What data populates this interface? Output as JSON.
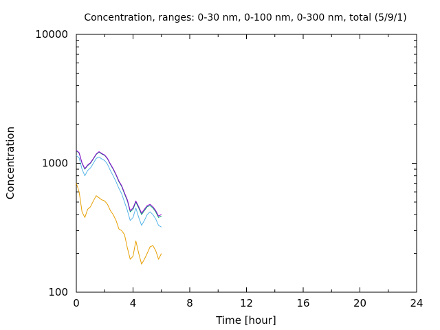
{
  "chart_data": {
    "type": "line",
    "title": "Concentration, ranges: 0-30 nm, 0-100 nm, 0-300 nm, total (5/9/1)",
    "xlabel": "Time [hour]",
    "ylabel": "Concentration",
    "xlim": [
      0,
      24
    ],
    "ylim": [
      100,
      10000
    ],
    "yscale": "log",
    "xticks": [
      0,
      4,
      8,
      12,
      16,
      20,
      24
    ],
    "yticks": [
      100,
      1000,
      10000
    ],
    "xtick_labels": [
      "0",
      "4",
      "8",
      "12",
      "16",
      "20",
      "24"
    ],
    "ytick_labels": [
      "100",
      "1000",
      "10000"
    ],
    "grid": false,
    "legend": "none",
    "series": [
      {
        "color": "#e69f00",
        "x": [
          0,
          0.2,
          0.4,
          0.6,
          0.8,
          1.0,
          1.2,
          1.4,
          1.6,
          1.8,
          2.0,
          2.2,
          2.4,
          2.6,
          2.8,
          3.0,
          3.2,
          3.4,
          3.6,
          3.8,
          4.0,
          4.2,
          4.4,
          4.6,
          4.8,
          5.0,
          5.2,
          5.4,
          5.6,
          5.8,
          6.0
        ],
        "y": [
          700,
          600,
          420,
          380,
          440,
          460,
          510,
          560,
          540,
          520,
          510,
          480,
          430,
          400,
          360,
          310,
          300,
          280,
          220,
          180,
          190,
          250,
          200,
          165,
          180,
          200,
          225,
          230,
          210,
          180,
          200
        ]
      },
      {
        "color": "#56b4e9",
        "x": [
          0,
          0.2,
          0.4,
          0.6,
          0.8,
          1.0,
          1.2,
          1.4,
          1.6,
          1.8,
          2.0,
          2.2,
          2.4,
          2.6,
          2.8,
          3.0,
          3.2,
          3.4,
          3.6,
          3.8,
          4.0,
          4.2,
          4.4,
          4.6,
          4.8,
          5.0,
          5.2,
          5.4,
          5.6,
          5.8,
          6.0
        ],
        "y": [
          1150,
          1100,
          900,
          800,
          880,
          920,
          1000,
          1090,
          1120,
          1080,
          1050,
          980,
          880,
          800,
          720,
          640,
          580,
          500,
          430,
          360,
          380,
          450,
          380,
          330,
          360,
          400,
          420,
          400,
          370,
          330,
          320
        ]
      },
      {
        "color": "#009e73",
        "x": [
          0,
          0.2,
          0.4,
          0.6,
          0.8,
          1.0,
          1.2,
          1.4,
          1.6,
          1.8,
          2.0,
          2.2,
          2.4,
          2.6,
          2.8,
          3.0,
          3.2,
          3.4,
          3.6,
          3.8,
          4.0,
          4.2,
          4.4,
          4.6,
          4.8,
          5.0,
          5.2,
          5.4,
          5.6,
          5.8,
          6.0
        ],
        "y": [
          1250,
          1200,
          1000,
          900,
          960,
          1000,
          1080,
          1170,
          1220,
          1180,
          1150,
          1080,
          980,
          900,
          810,
          720,
          660,
          580,
          510,
          420,
          440,
          500,
          450,
          400,
          430,
          460,
          470,
          450,
          420,
          380,
          390
        ]
      },
      {
        "color": "#9400d3",
        "x": [
          0,
          0.2,
          0.4,
          0.6,
          0.8,
          1.0,
          1.2,
          1.4,
          1.6,
          1.8,
          2.0,
          2.2,
          2.4,
          2.6,
          2.8,
          3.0,
          3.2,
          3.4,
          3.6,
          3.8,
          4.0,
          4.2,
          4.4,
          4.6,
          4.8,
          5.0,
          5.2,
          5.4,
          5.6,
          5.8,
          6.0
        ],
        "y": [
          1260,
          1210,
          1010,
          910,
          970,
          1010,
          1090,
          1180,
          1230,
          1190,
          1160,
          1090,
          990,
          910,
          820,
          730,
          670,
          590,
          520,
          430,
          450,
          510,
          460,
          410,
          440,
          470,
          480,
          460,
          430,
          390,
          400
        ]
      }
    ]
  }
}
